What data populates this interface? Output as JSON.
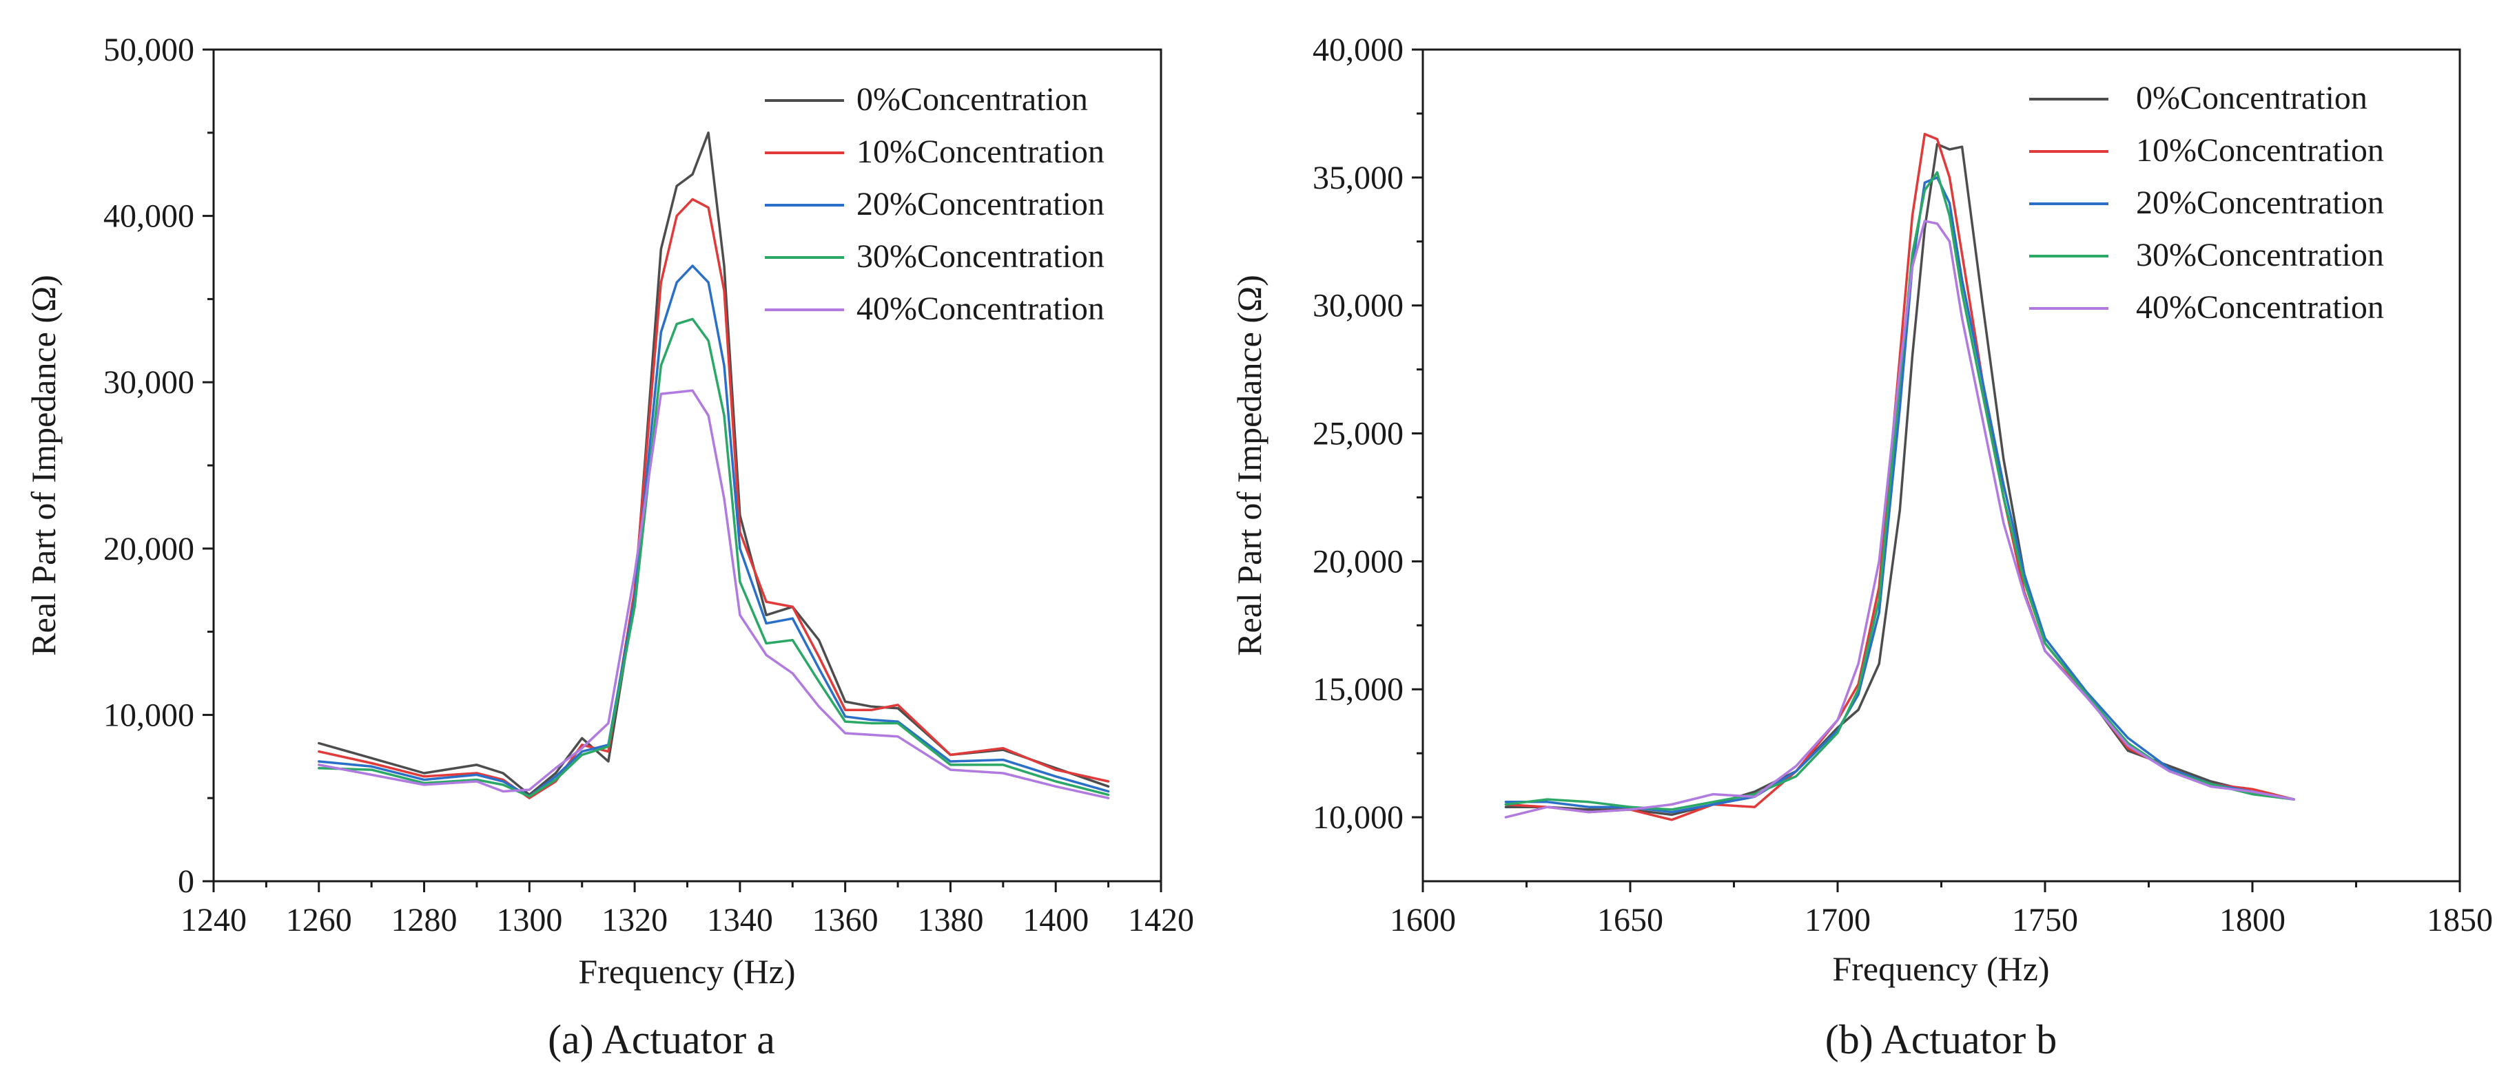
{
  "chart_data": [
    {
      "type": "line",
      "caption": "(a) Actuator a",
      "xlabel": "Frequency (Hz)",
      "ylabel": "Real Part of Impedance (Ω)",
      "xlim": [
        1240,
        1420
      ],
      "ylim": [
        0,
        50000
      ],
      "xticks": [
        1240,
        1260,
        1280,
        1300,
        1320,
        1340,
        1360,
        1380,
        1400,
        1420
      ],
      "xtick_labels": [
        "1240",
        "1260",
        "1280",
        "1300",
        "1320",
        "1340",
        "1360",
        "1380",
        "1400",
        "1420"
      ],
      "yticks": [
        0,
        10000,
        20000,
        30000,
        40000,
        50000
      ],
      "ytick_labels": [
        "0",
        "10,000",
        "20,000",
        "30,000",
        "40,000",
        "50,000"
      ],
      "legend_position": "top-right",
      "x": [
        1260,
        1270,
        1280,
        1290,
        1295,
        1300,
        1305,
        1310,
        1315,
        1320,
        1325,
        1328,
        1331,
        1334,
        1337,
        1340,
        1345,
        1350,
        1355,
        1360,
        1365,
        1370,
        1380,
        1390,
        1400,
        1410
      ],
      "series": [
        {
          "name": "0%Concentration",
          "color": "#4d4d4d",
          "values": [
            8300,
            7400,
            6500,
            7000,
            6500,
            5200,
            6500,
            8600,
            7200,
            17000,
            38000,
            41800,
            42500,
            45000,
            37000,
            22000,
            16000,
            16500,
            14500,
            10800,
            10500,
            10400,
            7600,
            7900,
            6800,
            5700
          ]
        },
        {
          "name": "10%Concentration",
          "color": "#e03a3a",
          "values": [
            7800,
            7100,
            6300,
            6500,
            6100,
            5000,
            6000,
            8200,
            7800,
            17500,
            36000,
            40000,
            41000,
            40500,
            35500,
            21000,
            16800,
            16500,
            13500,
            10300,
            10300,
            10600,
            7600,
            8000,
            6700,
            6000
          ]
        },
        {
          "name": "20%Concentration",
          "color": "#2b70c8",
          "values": [
            7200,
            6900,
            6100,
            6400,
            6000,
            5100,
            6300,
            7800,
            8200,
            17000,
            33000,
            36000,
            37000,
            36000,
            31000,
            20000,
            15500,
            15800,
            12800,
            9900,
            9700,
            9600,
            7200,
            7300,
            6300,
            5400
          ]
        },
        {
          "name": "30%Concentration",
          "color": "#2ba866",
          "values": [
            6800,
            6700,
            5900,
            6100,
            5800,
            5100,
            6100,
            7600,
            8100,
            16500,
            31000,
            33500,
            33800,
            32500,
            28000,
            18000,
            14300,
            14500,
            12000,
            9600,
            9500,
            9500,
            7000,
            7000,
            6000,
            5200
          ]
        },
        {
          "name": "40%Concentration",
          "color": "#b07ae0",
          "values": [
            7000,
            6400,
            5800,
            6000,
            5400,
            5500,
            6800,
            8000,
            9500,
            18500,
            29300,
            29400,
            29500,
            28000,
            23000,
            16000,
            13600,
            12500,
            10500,
            8900,
            8800,
            8700,
            6700,
            6500,
            5700,
            5000
          ]
        }
      ]
    },
    {
      "type": "line",
      "caption": "(b) Actuator b",
      "xlabel": "Frequency (Hz)",
      "ylabel": "Real Part of Impedance (Ω)",
      "xlim": [
        1600,
        1850
      ],
      "ylim": [
        7500,
        40000
      ],
      "xticks": [
        1600,
        1650,
        1700,
        1750,
        1800,
        1850
      ],
      "xtick_labels": [
        "1600",
        "1650",
        "1700",
        "1750",
        "1800",
        "1850"
      ],
      "yticks": [
        10000,
        15000,
        20000,
        25000,
        30000,
        35000,
        40000
      ],
      "ytick_labels": [
        "10,000",
        "15,000",
        "20,000",
        "25,000",
        "30,000",
        "35,000",
        "40,000"
      ],
      "legend_position": "top-right",
      "x": [
        1620,
        1630,
        1640,
        1650,
        1660,
        1670,
        1680,
        1690,
        1700,
        1705,
        1710,
        1715,
        1718,
        1721,
        1724,
        1727,
        1730,
        1735,
        1740,
        1745,
        1750,
        1760,
        1770,
        1780,
        1790,
        1800,
        1810
      ],
      "series": [
        {
          "name": "0%Concentration",
          "color": "#4d4d4d",
          "values": [
            10400,
            10400,
            10300,
            10300,
            10100,
            10500,
            11000,
            11800,
            13500,
            14200,
            16000,
            22000,
            28000,
            33000,
            36300,
            36100,
            36200,
            30000,
            24000,
            19500,
            16800,
            14800,
            12600,
            12000,
            11400,
            11000,
            10700
          ]
        },
        {
          "name": "10%Concentration",
          "color": "#e03a3a",
          "values": [
            10500,
            10400,
            10200,
            10300,
            9900,
            10500,
            10400,
            11800,
            13800,
            15200,
            19000,
            28000,
            33500,
            36700,
            36500,
            35000,
            32000,
            27000,
            22500,
            18800,
            16500,
            14800,
            12700,
            11900,
            11300,
            11100,
            10700
          ]
        },
        {
          "name": "20%Concentration",
          "color": "#2b70c8",
          "values": [
            10600,
            10600,
            10400,
            10400,
            10200,
            10500,
            10800,
            11800,
            13400,
            14800,
            18000,
            26000,
            31500,
            34800,
            35000,
            34000,
            31000,
            27000,
            23000,
            19500,
            17000,
            14900,
            13100,
            11900,
            11300,
            11000,
            10700
          ]
        },
        {
          "name": "30%Concentration",
          "color": "#2ba866",
          "values": [
            10500,
            10700,
            10600,
            10400,
            10300,
            10600,
            10900,
            11600,
            13300,
            15000,
            18500,
            27000,
            32000,
            34500,
            35200,
            33500,
            30500,
            26500,
            22500,
            19200,
            16800,
            14800,
            12900,
            11800,
            11300,
            10900,
            10700
          ]
        },
        {
          "name": "40%Concentration",
          "color": "#b07ae0",
          "values": [
            10000,
            10400,
            10200,
            10300,
            10500,
            10900,
            10800,
            12000,
            13800,
            16000,
            20000,
            27500,
            31500,
            33300,
            33200,
            32500,
            29500,
            25500,
            21500,
            18700,
            16500,
            14700,
            12800,
            11800,
            11200,
            11000,
            10700
          ]
        }
      ]
    }
  ]
}
